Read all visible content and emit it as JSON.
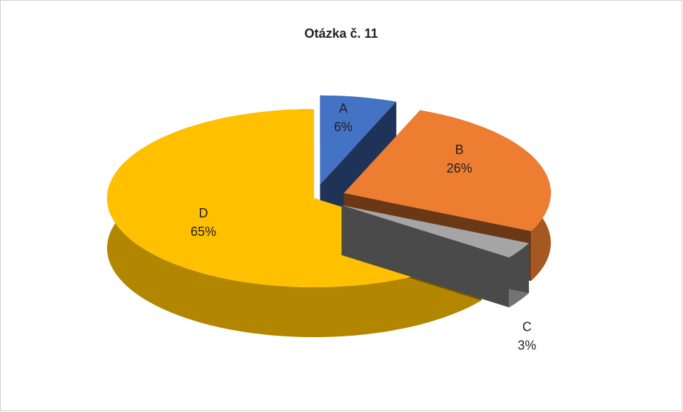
{
  "chart_data": {
    "type": "pie",
    "title": "Otázka č. 11",
    "categories": [
      "A",
      "B",
      "C",
      "D"
    ],
    "values": [
      6,
      26,
      3,
      65
    ],
    "value_labels": [
      "6%",
      "26%",
      "3%",
      "65%"
    ],
    "colors": [
      "#4472c4",
      "#ed7d31",
      "#a5a5a5",
      "#ffc000"
    ]
  }
}
